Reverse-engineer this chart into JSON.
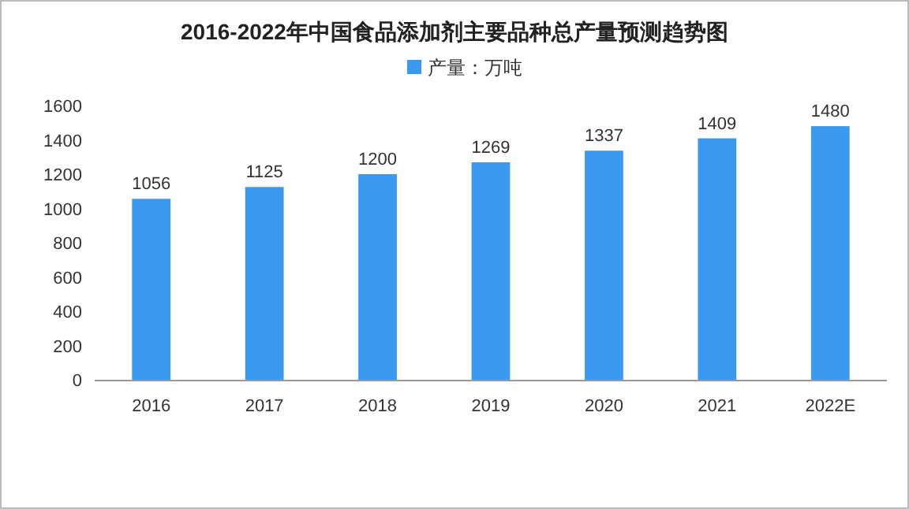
{
  "chart_data": {
    "type": "bar",
    "title": "2016-2022年中国食品添加剂主要品种总产量预测趋势图",
    "categories": [
      "2016",
      "2017",
      "2018",
      "2019",
      "2020",
      "2021",
      "2022E"
    ],
    "series": [
      {
        "name": "产量：万吨",
        "color": "#3b99f0",
        "values": [
          1056,
          1125,
          1200,
          1269,
          1337,
          1409,
          1480
        ]
      }
    ],
    "ylim": [
      0,
      1600
    ],
    "yticks": [
      0,
      200,
      400,
      600,
      800,
      1000,
      1200,
      1400,
      1600
    ],
    "data_labels": true,
    "legend": "top",
    "grid": false
  }
}
